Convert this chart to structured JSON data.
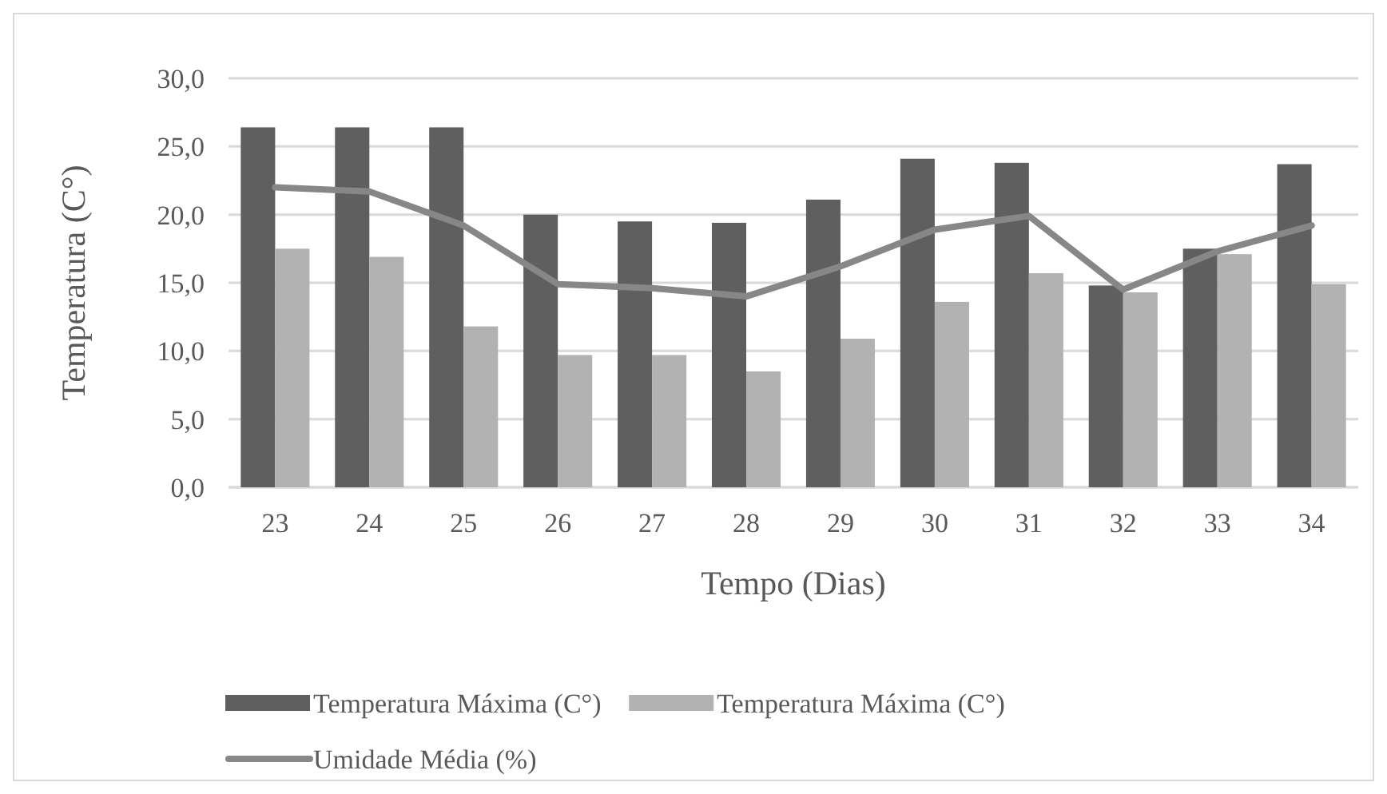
{
  "chart_data": {
    "type": "bar",
    "xlabel": "Tempo (Dias)",
    "ylabel": "Temperatura (C°)",
    "categories": [
      "23",
      "24",
      "25",
      "26",
      "27",
      "28",
      "29",
      "30",
      "31",
      "32",
      "33",
      "34"
    ],
    "series": [
      {
        "name": "Temperatura Máxima (C°)",
        "color": "#5f5f5f",
        "values": [
          26.4,
          26.4,
          26.4,
          20.0,
          19.5,
          19.4,
          21.1,
          24.1,
          23.8,
          14.8,
          17.5,
          23.7
        ]
      },
      {
        "name": "Temperatura Máxima (C°)",
        "color": "#b2b2b2",
        "values": [
          17.5,
          16.9,
          11.8,
          9.7,
          9.7,
          8.5,
          10.9,
          13.6,
          15.7,
          14.3,
          17.1,
          14.9
        ]
      },
      {
        "name": "Umidade Média (%)",
        "type": "line",
        "color": "#878787",
        "values": [
          22.0,
          21.7,
          19.2,
          14.9,
          14.6,
          14.0,
          16.2,
          18.9,
          19.9,
          14.5,
          17.3,
          19.2
        ]
      }
    ],
    "ylim": [
      0,
      30
    ],
    "yticks": [
      {
        "value": 0,
        "label": "0,0"
      },
      {
        "value": 5,
        "label": "5,0"
      },
      {
        "value": 10,
        "label": "10,0"
      },
      {
        "value": 15,
        "label": "15,0"
      },
      {
        "value": 20,
        "label": "20,0"
      },
      {
        "value": 25,
        "label": "25,0"
      },
      {
        "value": 30,
        "label": "30,0"
      }
    ],
    "grid": "y",
    "legend": "bottom"
  }
}
